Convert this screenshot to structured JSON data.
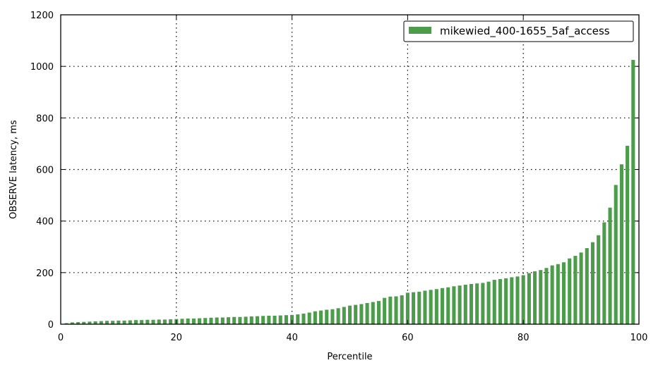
{
  "colors": {
    "bar": "#4c9c4c",
    "axis": "#000000",
    "grid": "#000000",
    "background": "#ffffff"
  },
  "chart_data": {
    "type": "bar",
    "title": "",
    "xlabel": "Percentile",
    "ylabel": "OBSERVE latency, ms",
    "xlim": [
      0,
      100
    ],
    "ylim": [
      0,
      1200
    ],
    "xticks": [
      0,
      20,
      40,
      60,
      80,
      100
    ],
    "yticks": [
      0,
      200,
      400,
      600,
      800,
      1000,
      1200
    ],
    "grid": true,
    "grid_style": "dotted",
    "legend_position": "top-right",
    "series": [
      {
        "name": "mikewied_400-1655_5af_access",
        "color": "#4c9c4c",
        "x": [
          1,
          2,
          3,
          4,
          5,
          6,
          7,
          8,
          9,
          10,
          11,
          12,
          13,
          14,
          15,
          16,
          17,
          18,
          19,
          20,
          21,
          22,
          23,
          24,
          25,
          26,
          27,
          28,
          29,
          30,
          31,
          32,
          33,
          34,
          35,
          36,
          37,
          38,
          39,
          40,
          41,
          42,
          43,
          44,
          45,
          46,
          47,
          48,
          49,
          50,
          51,
          52,
          53,
          54,
          55,
          56,
          57,
          58,
          59,
          60,
          61,
          62,
          63,
          64,
          65,
          66,
          67,
          68,
          69,
          70,
          71,
          72,
          73,
          74,
          75,
          76,
          77,
          78,
          79,
          80,
          81,
          82,
          83,
          84,
          85,
          86,
          87,
          88,
          89,
          90,
          91,
          92,
          93,
          94,
          95,
          96,
          97,
          98,
          99
        ],
        "values": [
          4,
          7,
          8,
          9,
          10,
          11,
          12,
          13,
          13,
          14,
          14,
          15,
          16,
          16,
          17,
          17,
          18,
          18,
          19,
          20,
          21,
          22,
          22,
          23,
          24,
          25,
          26,
          26,
          27,
          28,
          28,
          29,
          30,
          31,
          32,
          33,
          33,
          34,
          35,
          36,
          38,
          41,
          45,
          50,
          53,
          56,
          58,
          62,
          67,
          72,
          75,
          78,
          82,
          86,
          90,
          102,
          107,
          108,
          112,
          122,
          124,
          126,
          130,
          133,
          136,
          140,
          143,
          147,
          150,
          153,
          156,
          158,
          160,
          165,
          172,
          175,
          178,
          182,
          185,
          190,
          198,
          205,
          210,
          218,
          228,
          233,
          240,
          255,
          265,
          278,
          295,
          318,
          345,
          395,
          452,
          540,
          620,
          692,
          1025
        ]
      }
    ]
  }
}
